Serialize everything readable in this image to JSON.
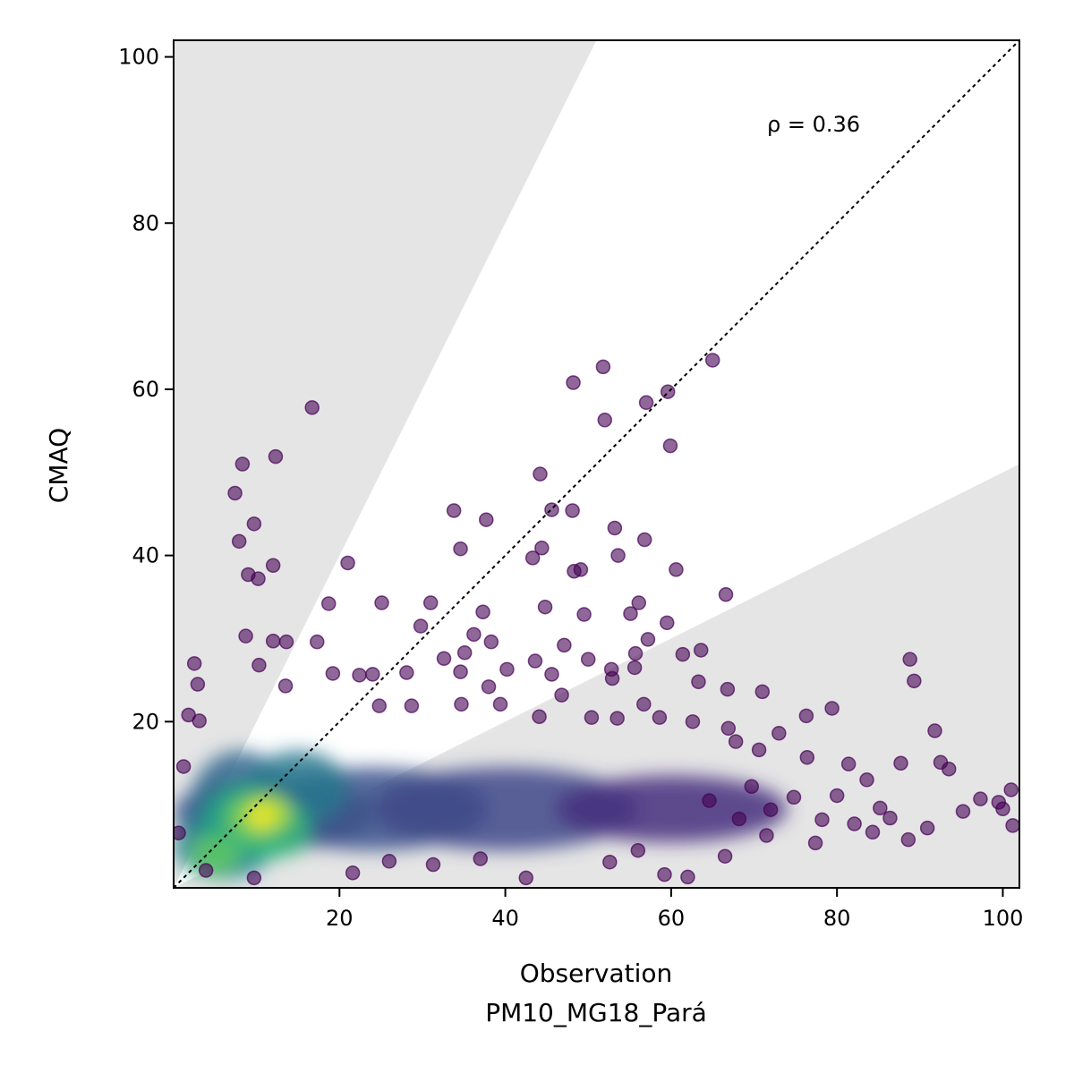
{
  "chart_data": {
    "type": "scatter",
    "title": "",
    "xlabel": "Observation",
    "xlabel_sub": "PM10_MG18_Pará",
    "ylabel": "CMAQ",
    "xlim": [
      0,
      102
    ],
    "ylim": [
      0,
      102
    ],
    "xticks": [
      20,
      40,
      60,
      80,
      100
    ],
    "yticks": [
      20,
      40,
      60,
      80,
      100
    ],
    "grid": false,
    "annotation": "ρ = 0.36",
    "reference_line": {
      "type": "1:1",
      "style": "dotted",
      "color": "#000000"
    },
    "shaded_regions": [
      {
        "name": "overprediction-factor-2",
        "slope": 2,
        "color": "#e5e5e5"
      },
      {
        "name": "underprediction-factor-2",
        "slope": 0.5,
        "color": "#e5e5e5"
      }
    ],
    "colormap": "viridis",
    "marker_alpha": 0.6,
    "point_color": "#440154",
    "points": [
      [
        16.7,
        57.8
      ],
      [
        51.8,
        62.7
      ],
      [
        65.0,
        63.5
      ],
      [
        48.2,
        60.8
      ],
      [
        59.6,
        59.7
      ],
      [
        57.0,
        58.4
      ],
      [
        52.0,
        56.3
      ],
      [
        59.9,
        53.2
      ],
      [
        12.3,
        51.9
      ],
      [
        8.3,
        51.0
      ],
      [
        7.4,
        47.5
      ],
      [
        44.2,
        49.8
      ],
      [
        33.8,
        45.4
      ],
      [
        45.6,
        45.5
      ],
      [
        48.1,
        45.4
      ],
      [
        37.7,
        44.3
      ],
      [
        9.7,
        43.8
      ],
      [
        53.2,
        43.3
      ],
      [
        7.9,
        41.7
      ],
      [
        56.8,
        41.9
      ],
      [
        34.6,
        40.8
      ],
      [
        44.4,
        40.9
      ],
      [
        21.0,
        39.1
      ],
      [
        43.3,
        39.7
      ],
      [
        53.6,
        40.0
      ],
      [
        48.3,
        38.1
      ],
      [
        49.1,
        38.3
      ],
      [
        60.6,
        38.3
      ],
      [
        12.0,
        38.8
      ],
      [
        9.0,
        37.7
      ],
      [
        10.2,
        37.2
      ],
      [
        66.6,
        35.3
      ],
      [
        18.7,
        34.2
      ],
      [
        25.1,
        34.3
      ],
      [
        31.0,
        34.3
      ],
      [
        56.1,
        34.3
      ],
      [
        44.8,
        33.8
      ],
      [
        37.3,
        33.2
      ],
      [
        55.1,
        33.0
      ],
      [
        49.5,
        32.9
      ],
      [
        29.8,
        31.5
      ],
      [
        59.5,
        31.9
      ],
      [
        36.2,
        30.5
      ],
      [
        8.7,
        30.3
      ],
      [
        12.0,
        29.7
      ],
      [
        13.6,
        29.6
      ],
      [
        17.3,
        29.6
      ],
      [
        38.3,
        29.6
      ],
      [
        47.1,
        29.2
      ],
      [
        57.2,
        29.9
      ],
      [
        35.1,
        28.3
      ],
      [
        55.7,
        28.2
      ],
      [
        61.4,
        28.1
      ],
      [
        63.6,
        28.6
      ],
      [
        32.6,
        27.6
      ],
      [
        43.6,
        27.3
      ],
      [
        50.0,
        27.5
      ],
      [
        88.8,
        27.5
      ],
      [
        2.5,
        27.0
      ],
      [
        10.3,
        26.8
      ],
      [
        34.6,
        26.0
      ],
      [
        40.2,
        26.3
      ],
      [
        45.6,
        25.7
      ],
      [
        52.8,
        26.3
      ],
      [
        55.6,
        26.5
      ],
      [
        28.1,
        25.9
      ],
      [
        19.2,
        25.8
      ],
      [
        22.4,
        25.6
      ],
      [
        24.0,
        25.7
      ],
      [
        52.9,
        25.2
      ],
      [
        63.3,
        24.8
      ],
      [
        89.3,
        24.9
      ],
      [
        2.9,
        24.5
      ],
      [
        13.5,
        24.3
      ],
      [
        38.0,
        24.2
      ],
      [
        46.8,
        23.2
      ],
      [
        66.8,
        23.9
      ],
      [
        71.0,
        23.6
      ],
      [
        39.4,
        22.1
      ],
      [
        56.7,
        22.1
      ],
      [
        79.4,
        21.6
      ],
      [
        24.8,
        21.9
      ],
      [
        28.7,
        21.9
      ],
      [
        34.7,
        22.1
      ],
      [
        76.3,
        20.7
      ],
      [
        44.1,
        20.6
      ],
      [
        50.4,
        20.5
      ],
      [
        58.6,
        20.5
      ],
      [
        53.5,
        20.4
      ],
      [
        1.8,
        20.8
      ],
      [
        3.1,
        20.1
      ],
      [
        62.6,
        20.0
      ],
      [
        66.9,
        19.2
      ],
      [
        91.8,
        18.9
      ],
      [
        73.0,
        18.6
      ],
      [
        67.8,
        17.6
      ],
      [
        70.6,
        16.6
      ],
      [
        76.4,
        15.7
      ],
      [
        81.4,
        14.9
      ],
      [
        87.7,
        15.0
      ],
      [
        92.5,
        15.1
      ],
      [
        93.5,
        14.3
      ],
      [
        99.5,
        10.3
      ],
      [
        101.0,
        11.8
      ],
      [
        100.0,
        9.5
      ],
      [
        101.2,
        7.5
      ],
      [
        97.3,
        10.7
      ],
      [
        95.2,
        9.2
      ],
      [
        88.6,
        5.8
      ],
      [
        84.3,
        6.7
      ],
      [
        77.4,
        5.4
      ],
      [
        71.5,
        6.3
      ],
      [
        66.5,
        3.8
      ],
      [
        59.2,
        1.6
      ],
      [
        62.0,
        1.3
      ],
      [
        56.0,
        4.5
      ],
      [
        52.6,
        3.1
      ],
      [
        42.5,
        1.2
      ],
      [
        37.0,
        3.5
      ],
      [
        31.3,
        2.8
      ],
      [
        26.0,
        3.2
      ],
      [
        21.6,
        1.8
      ],
      [
        9.7,
        1.2
      ],
      [
        3.9,
        2.1
      ],
      [
        0.6,
        6.6
      ],
      [
        1.2,
        14.6
      ],
      [
        85.2,
        9.6
      ],
      [
        83.6,
        13.0
      ],
      [
        80.0,
        11.1
      ],
      [
        74.8,
        10.9
      ],
      [
        69.7,
        12.2
      ],
      [
        64.6,
        10.5
      ],
      [
        68.2,
        8.3
      ],
      [
        72.0,
        9.4
      ],
      [
        78.2,
        8.2
      ],
      [
        82.1,
        7.7
      ],
      [
        86.4,
        8.4
      ],
      [
        90.9,
        7.2
      ]
    ],
    "density_blobs": [
      {
        "x": 12.0,
        "y": 9.0,
        "rx": 12,
        "ry": 4.5,
        "color": "#3b528b"
      },
      {
        "x": 24.0,
        "y": 9.5,
        "rx": 14,
        "ry": 5.0,
        "color": "#3b528b"
      },
      {
        "x": 40.0,
        "y": 9.5,
        "rx": 16,
        "ry": 5.0,
        "color": "#3e4989"
      },
      {
        "x": 60.0,
        "y": 9.5,
        "rx": 14,
        "ry": 4.0,
        "color": "#46307e"
      },
      {
        "x": 8.0,
        "y": 10.0,
        "rx": 6,
        "ry": 6.5,
        "color": "#31688e"
      },
      {
        "x": 6.0,
        "y": 5.0,
        "rx": 6,
        "ry": 4.0,
        "color": "#26828e"
      },
      {
        "x": 15.0,
        "y": 12.0,
        "rx": 6,
        "ry": 4.5,
        "color": "#2a788e"
      },
      {
        "x": 9.0,
        "y": 8.0,
        "rx": 5.5,
        "ry": 4.5,
        "color": "#22a884"
      },
      {
        "x": 12.0,
        "y": 7.0,
        "rx": 4.5,
        "ry": 3.5,
        "color": "#35b779"
      },
      {
        "x": 9.5,
        "y": 8.5,
        "rx": 3.2,
        "ry": 2.6,
        "color": "#7ad151"
      },
      {
        "x": 11.5,
        "y": 9.0,
        "rx": 2.6,
        "ry": 2.1,
        "color": "#bddf26"
      },
      {
        "x": 10.5,
        "y": 8.5,
        "rx": 1.6,
        "ry": 1.4,
        "color": "#fde725"
      },
      {
        "x": 5.0,
        "y": 4.0,
        "rx": 3.0,
        "ry": 2.5,
        "color": "#5ec962"
      }
    ]
  }
}
